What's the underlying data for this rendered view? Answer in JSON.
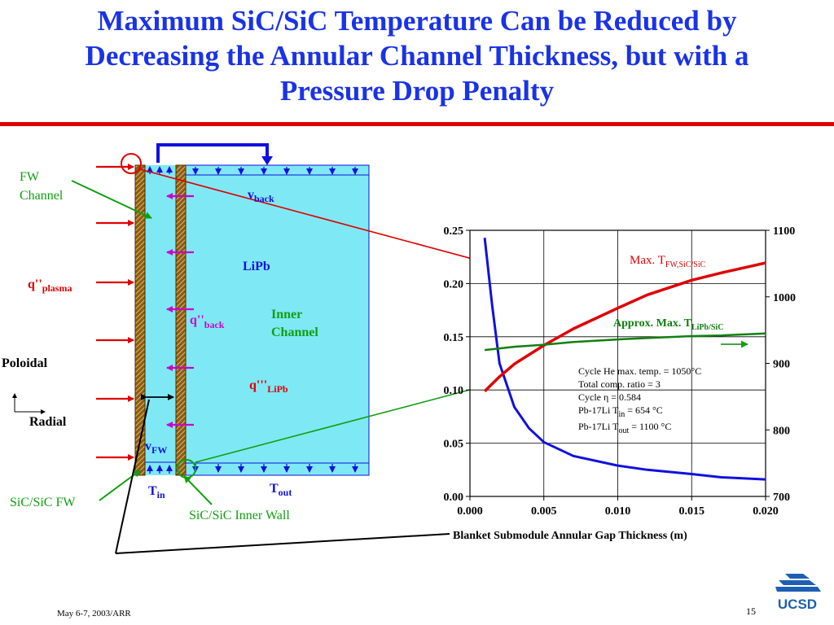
{
  "slide": {
    "title_lines": [
      "Maximum SiC/SiC Temperature Can be Reduced by",
      "Decreasing the Annular Channel Thickness, but with a",
      "Pressure Drop Penalty"
    ],
    "footer_date": "May 6-7, 2003/ARR",
    "page_number": "15",
    "logo_text": "UCSD"
  },
  "schematic": {
    "fw_channel": [
      "FW",
      "Channel"
    ],
    "q_plasma": "q''",
    "q_plasma_sub": "plasma",
    "poloidal": "Poloidal",
    "radial": "Radial",
    "v_back": "v",
    "v_back_sub": "back",
    "lipb": "LiPb",
    "inner_channel": [
      "Inner",
      "Channel"
    ],
    "q_back": "q''",
    "q_back_sub": "back",
    "q_lipb": "q'''",
    "q_lipb_sub": "LiPb",
    "v_fw": "v",
    "v_fw_sub": "FW",
    "t_in": "T",
    "t_in_sub": "in",
    "t_out": "T",
    "t_out_sub": "out",
    "sic_fw": "SiC/SiC FW",
    "sic_inner_wall": "SiC/SiC Inner Wall"
  },
  "chart_data": {
    "type": "line",
    "xlabel": "Blanket Submodule Annular Gap Thickness (m)",
    "xlim": [
      0,
      0.02
    ],
    "x_ticks": [
      "0.000",
      "0.005",
      "0.010",
      "0.015",
      "0.020"
    ],
    "ylim_left": [
      0,
      0.25
    ],
    "y_ticks_left": [
      "0.00",
      "0.05",
      "0.10",
      "0.15",
      "0.20",
      "0.25"
    ],
    "ylim_right": [
      700,
      1100
    ],
    "y_ticks_right": [
      "700",
      "800",
      "900",
      "1000",
      "1100"
    ],
    "grid": true,
    "series": [
      {
        "color": "#1010e0",
        "axis": "left",
        "x": [
          0.001,
          0.0015,
          0.002,
          0.003,
          0.004,
          0.005,
          0.007,
          0.01,
          0.012,
          0.015,
          0.017,
          0.02
        ],
        "y": [
          0.243,
          0.18,
          0.125,
          0.084,
          0.064,
          0.051,
          0.038,
          0.029,
          0.025,
          0.021,
          0.018,
          0.016
        ]
      },
      {
        "color": "#e00000",
        "axis": "right",
        "x": [
          0.001,
          0.002,
          0.003,
          0.005,
          0.007,
          0.01,
          0.012,
          0.015,
          0.017,
          0.02
        ],
        "y": [
          858,
          880,
          899,
          927,
          952,
          983,
          1003,
          1025,
          1036,
          1051
        ]
      },
      {
        "color": "#108010",
        "axis": "right",
        "x": [
          0.001,
          0.003,
          0.005,
          0.007,
          0.01,
          0.012,
          0.015,
          0.017,
          0.02
        ],
        "y": [
          920,
          925,
          928,
          932,
          936,
          938,
          941,
          942,
          945
        ]
      }
    ],
    "annotations": {
      "max_tfw": "Max. T",
      "max_tfw_sub": "FW,SiC/SiC",
      "approx_max": "Approx. Max.  T",
      "approx_max_sub": "LiPb/SiC",
      "notes": [
        "Cycle He max. temp. = 1050°C",
        "Total comp. ratio = 3",
        "Cycle η = 0.584",
        "Pb-17Li T",
        "Pb-17Li  T"
      ],
      "note_tin_sub": "in",
      "note_tin_val": " = 654 °C",
      "note_tout_sub": "out",
      "note_tout_val": " = 1100 °C"
    }
  }
}
